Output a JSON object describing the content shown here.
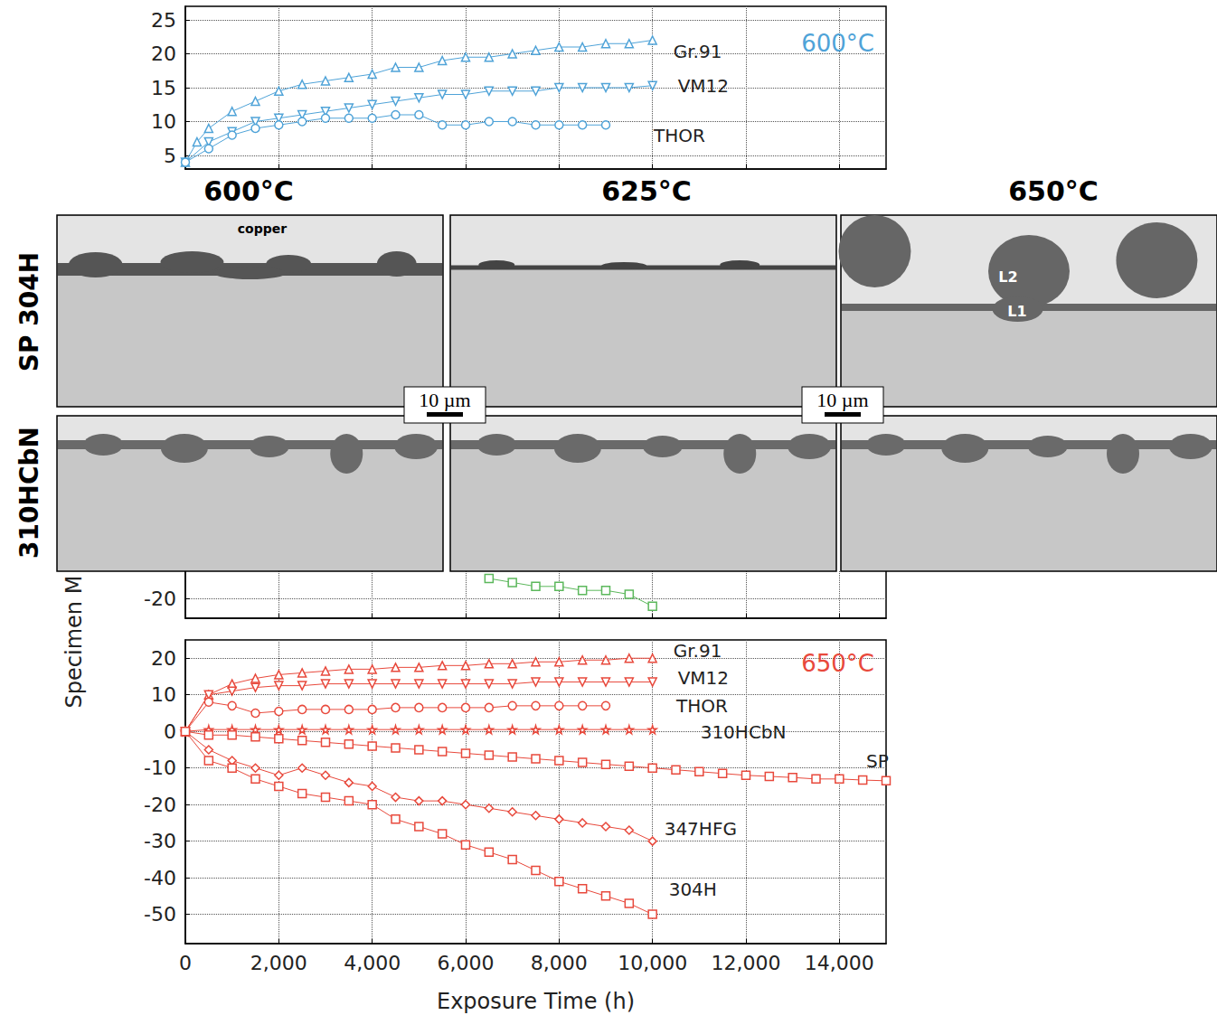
{
  "chart_data": [
    {
      "type": "line",
      "title": "600°C",
      "xlim": [
        0,
        15000
      ],
      "xticks": [
        0,
        {
          "value": 2000,
          "label": "2,000"
        },
        {
          "value": 4000,
          "label": "4,000"
        },
        {
          "value": 6000,
          "label": "6,000"
        },
        {
          "value": 8000,
          "label": "8,000"
        },
        {
          "value": 10000,
          "label": "10,000"
        },
        {
          "value": 12000,
          "label": "12,000"
        },
        {
          "value": 14000,
          "label": "14,000"
        }
      ],
      "ylim": [
        3,
        27
      ],
      "yticks": [
        5,
        10,
        15,
        20,
        25
      ],
      "grid": true,
      "tick_labels": "y",
      "series": [
        {
          "name": "Gr.91",
          "color": "#4fa3d8",
          "marker": "triangle",
          "x": [
            0,
            250,
            500,
            1000,
            1500,
            2000,
            2500,
            3000,
            3500,
            4000,
            4500,
            5000,
            5500,
            6000,
            6500,
            7000,
            7500,
            8000,
            8500,
            9000,
            9500,
            10000
          ],
          "values": [
            4,
            7,
            9,
            11.5,
            13,
            14.5,
            15.5,
            16,
            16.5,
            17,
            18,
            18,
            19,
            19.5,
            19.5,
            20,
            20.5,
            21,
            21,
            21.5,
            21.5,
            22
          ]
        },
        {
          "name": "VM12",
          "color": "#4fa3d8",
          "marker": "triangle_down",
          "x": [
            0,
            500,
            1000,
            1500,
            2000,
            2500,
            3000,
            3500,
            4000,
            4500,
            5000,
            5500,
            6000,
            6500,
            7000,
            7500,
            8000,
            8500,
            9000,
            9500,
            10000
          ],
          "values": [
            4,
            7,
            8.5,
            10,
            10.5,
            11,
            11.5,
            12,
            12.5,
            13,
            13.5,
            14,
            14,
            14.5,
            14.5,
            14.5,
            15,
            15,
            15,
            15,
            15.3
          ]
        },
        {
          "name": "THOR",
          "color": "#4fa3d8",
          "marker": "circle",
          "x": [
            0,
            500,
            1000,
            1500,
            2000,
            2500,
            3000,
            3500,
            4000,
            4500,
            5000,
            5500,
            6000,
            6500,
            7000,
            7500,
            8000,
            8500,
            9000
          ],
          "values": [
            4,
            6,
            8,
            9,
            9.5,
            10,
            10.5,
            10.5,
            10.5,
            11,
            11,
            9.5,
            9.5,
            10,
            10,
            9.5,
            9.5,
            9.5,
            9.5
          ]
        }
      ]
    },
    {
      "type": "line",
      "xlim": [
        0,
        15000
      ],
      "xticks": [
        0,
        {
          "value": 2000,
          "label": "2,000"
        },
        {
          "value": 4000,
          "label": "4,000"
        },
        {
          "value": 6000,
          "label": "6,000"
        },
        {
          "value": 8000,
          "label": "8,000"
        },
        {
          "value": 10000,
          "label": "10,000"
        },
        {
          "value": 12000,
          "label": "12,000"
        },
        {
          "value": 14000,
          "label": "14,000"
        }
      ],
      "ylim": [
        -25,
        -5
      ],
      "yticks": [
        -20
      ],
      "grid": true,
      "tick_labels": "y",
      "series": [
        {
          "color": "#5cb85c",
          "marker": "square",
          "x": [
            6500,
            7000,
            7500,
            8000,
            8500,
            9000,
            9500,
            10000
          ],
          "values": [
            -15,
            -16,
            -17,
            -17,
            -18,
            -18,
            -19,
            -22
          ]
        }
      ]
    },
    {
      "type": "line",
      "title": "650°C",
      "xlabel": "Exposure Time (h)",
      "ylabel": "Specimen M",
      "xlim": [
        0,
        15000
      ],
      "xticks": [
        0,
        {
          "value": 2000,
          "label": "2,000"
        },
        {
          "value": 4000,
          "label": "4,000"
        },
        {
          "value": 6000,
          "label": "6,000"
        },
        {
          "value": 8000,
          "label": "8,000"
        },
        {
          "value": 10000,
          "label": "10,000"
        },
        {
          "value": 12000,
          "label": "12,000"
        },
        {
          "value": 14000,
          "label": "14,000"
        }
      ],
      "ylim": [
        -58,
        25
      ],
      "yticks": [
        -50,
        -40,
        -30,
        -20,
        -10,
        0,
        10,
        20
      ],
      "grid": true,
      "series": [
        {
          "name": "Gr.91",
          "color": "#e8493c",
          "marker": "triangle",
          "x": [
            0,
            500,
            1000,
            1500,
            2000,
            2500,
            3000,
            3500,
            4000,
            4500,
            5000,
            5500,
            6000,
            6500,
            7000,
            7500,
            8000,
            8500,
            9000,
            9500,
            10000
          ],
          "values": [
            0,
            10,
            13,
            14.5,
            15.5,
            16,
            16.5,
            17,
            17,
            17.5,
            17.5,
            18,
            18,
            18.5,
            18.5,
            19,
            19,
            19.5,
            19.5,
            20,
            20
          ]
        },
        {
          "name": "VM12",
          "color": "#e8493c",
          "marker": "triangle_down",
          "x": [
            0,
            500,
            1000,
            1500,
            2000,
            2500,
            3000,
            3500,
            4000,
            4500,
            5000,
            5500,
            6000,
            6500,
            7000,
            7500,
            8000,
            8500,
            9000,
            9500,
            10000
          ],
          "values": [
            0,
            10,
            11,
            12,
            12.5,
            12.5,
            13,
            13,
            13,
            13,
            13,
            13,
            13,
            13,
            13,
            13.5,
            13.5,
            13.5,
            13.5,
            13.5,
            13.5
          ]
        },
        {
          "name": "THOR",
          "color": "#e8493c",
          "marker": "circle",
          "x": [
            0,
            500,
            1000,
            1500,
            2000,
            2500,
            3000,
            3500,
            4000,
            4500,
            5000,
            5500,
            6000,
            6500,
            7000,
            7500,
            8000,
            8500,
            9000
          ],
          "values": [
            0,
            8,
            7,
            5,
            5.5,
            6,
            6,
            6,
            6,
            6.5,
            6.5,
            6.5,
            6.5,
            6.5,
            7,
            7,
            7,
            7,
            7
          ]
        },
        {
          "name": "310HCbN",
          "color": "#e8493c",
          "marker": "star",
          "x": [
            0,
            500,
            1000,
            1500,
            2000,
            2500,
            3000,
            3500,
            4000,
            4500,
            5000,
            5500,
            6000,
            6500,
            7000,
            7500,
            8000,
            8500,
            9000,
            9500,
            10000
          ],
          "values": [
            0,
            0.5,
            0.5,
            0.5,
            0.5,
            0.5,
            0.5,
            0.5,
            0.5,
            0.5,
            0.5,
            0.5,
            0.5,
            0.5,
            0.5,
            0.5,
            0.5,
            0.5,
            0.5,
            0.5,
            0.5
          ]
        },
        {
          "name": "SP",
          "color": "#e8493c",
          "marker": "square",
          "x": [
            0,
            500,
            1000,
            1500,
            2000,
            2500,
            3000,
            3500,
            4000,
            4500,
            5000,
            5500,
            6000,
            6500,
            7000,
            7500,
            8000,
            8500,
            9000,
            9500,
            10000,
            10500,
            11000,
            11500,
            12000,
            12500,
            13000,
            13500,
            14000,
            14500,
            15000
          ],
          "values": [
            0,
            -1,
            -1,
            -1.5,
            -2,
            -2.5,
            -3,
            -3.5,
            -4,
            -4.5,
            -5,
            -5.5,
            -6,
            -6.5,
            -7,
            -7.5,
            -8,
            -8.5,
            -9,
            -9.5,
            -10,
            -10.5,
            -11,
            -11.5,
            -12,
            -12.3,
            -12.6,
            -13,
            -13,
            -13.3,
            -13.5
          ]
        },
        {
          "name": "347HFG",
          "color": "#e8493c",
          "marker": "diamond",
          "x": [
            0,
            500,
            1000,
            1500,
            2000,
            2500,
            3000,
            3500,
            4000,
            4500,
            5000,
            5500,
            6000,
            6500,
            7000,
            7500,
            8000,
            8500,
            9000,
            9500,
            10000
          ],
          "values": [
            0,
            -5,
            -8,
            -10,
            -12,
            -10,
            -12,
            -14,
            -15,
            -18,
            -19,
            -19,
            -20,
            -21,
            -22,
            -23,
            -24,
            -25,
            -26,
            -27,
            -30
          ]
        },
        {
          "name": "304H",
          "color": "#e8493c",
          "marker": "square",
          "x": [
            0,
            500,
            1000,
            1500,
            2000,
            2500,
            3000,
            3500,
            4000,
            4500,
            5000,
            5500,
            6000,
            6500,
            7000,
            7500,
            8000,
            8500,
            9000,
            9500,
            10000
          ],
          "values": [
            0,
            -8,
            -10,
            -13,
            -15,
            -17,
            -18,
            -19,
            -20,
            -24,
            -26,
            -28,
            -31,
            -33,
            -35,
            -38,
            -41,
            -43,
            -45,
            -47,
            -50
          ]
        }
      ]
    }
  ],
  "figure": {
    "column_titles": [
      "600°C",
      "625°C",
      "650°C"
    ],
    "row_labels": [
      "SP 304H",
      "310HCbN"
    ],
    "annotations": {
      "copper": "copper",
      "L1": "L1",
      "L2": "L2"
    },
    "scale_bars": [
      "10 µm",
      "10 µm"
    ]
  }
}
